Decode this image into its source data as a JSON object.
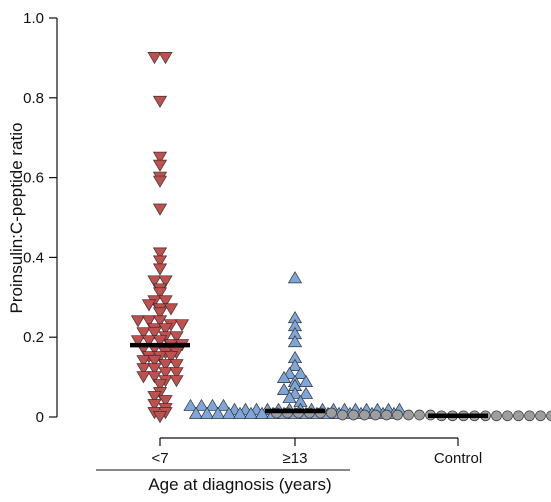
{
  "chart_data": {
    "type": "scatter",
    "title": "",
    "ylabel": "Proinsulin:C-peptide ratio",
    "xlabel": "Age at diagnosis (years)",
    "xlabel_groups": [
      "<7",
      "≥13"
    ],
    "ylim": [
      0,
      1.0
    ],
    "yticks": [
      0,
      0.2,
      0.4,
      0.6,
      0.8,
      "1.0"
    ],
    "categories": [
      "<7",
      "≥13",
      "Control"
    ],
    "grid": false,
    "series": [
      {
        "category": "<7",
        "marker": "triangle-down",
        "color": "#c0504d",
        "median": 0.18,
        "values": [
          0.9,
          0.9,
          0.79,
          0.65,
          0.63,
          0.6,
          0.59,
          0.52,
          0.41,
          0.39,
          0.37,
          0.34,
          0.34,
          0.32,
          0.31,
          0.29,
          0.29,
          0.28,
          0.27,
          0.27,
          0.26,
          0.24,
          0.24,
          0.24,
          0.23,
          0.23,
          0.22,
          0.22,
          0.21,
          0.21,
          0.2,
          0.2,
          0.19,
          0.19,
          0.19,
          0.18,
          0.18,
          0.17,
          0.17,
          0.16,
          0.16,
          0.15,
          0.15,
          0.15,
          0.14,
          0.14,
          0.13,
          0.13,
          0.12,
          0.12,
          0.11,
          0.11,
          0.1,
          0.1,
          0.09,
          0.09,
          0.08,
          0.06,
          0.05,
          0.04,
          0.03,
          0.02,
          0.01,
          0.01,
          0.0
        ]
      },
      {
        "category": "≥13",
        "marker": "triangle-up",
        "color": "#7ea6d8",
        "median": 0.015,
        "values": [
          0.35,
          0.25,
          0.23,
          0.21,
          0.19,
          0.15,
          0.13,
          0.11,
          0.11,
          0.1,
          0.09,
          0.09,
          0.08,
          0.07,
          0.06,
          0.06,
          0.05,
          0.04,
          0.03,
          0.03,
          0.03,
          0.03,
          0.02,
          0.02,
          0.02,
          0.02,
          0.02,
          0.02,
          0.02,
          0.02,
          0.02,
          0.02,
          0.02,
          0.02,
          0.02,
          0.02,
          0.02,
          0.02,
          0.01,
          0.01,
          0.01,
          0.01,
          0.01,
          0.01,
          0.01,
          0.01,
          0.01,
          0.01,
          0.01,
          0.01,
          0.01,
          0.01,
          0.01,
          0.01,
          0.01,
          0.01,
          0.01
        ]
      },
      {
        "category": "Control",
        "marker": "circle",
        "color": "#9e9e9e",
        "median": 0.003,
        "values": [
          0.01,
          0.01,
          0.01,
          0.01,
          0.01,
          0.01,
          0.005,
          0.005,
          0.005,
          0.005,
          0.005,
          0.005,
          0.005,
          0.005,
          0.005,
          0.003,
          0.003,
          0.003,
          0.003,
          0.003,
          0.003,
          0.003,
          0.003,
          0.003,
          0.003,
          0.003,
          0.003,
          0.003,
          0.003,
          0.003,
          0.003,
          0.003,
          0.003,
          0.003
        ]
      }
    ]
  }
}
